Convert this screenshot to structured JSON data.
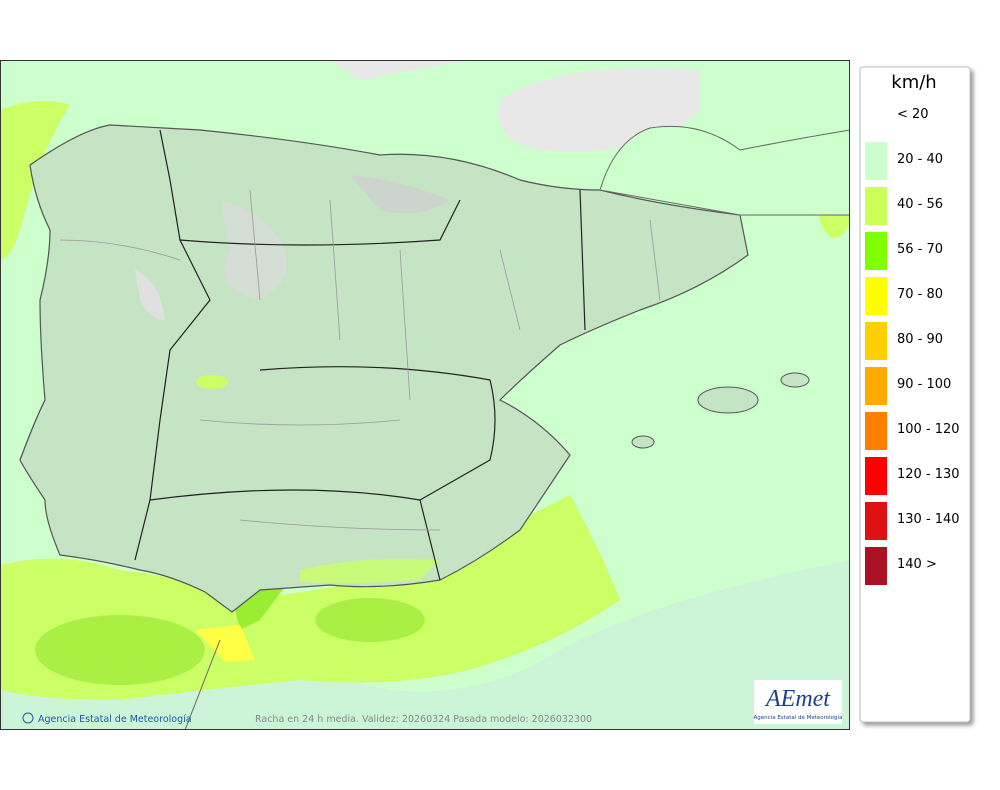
{
  "legend": {
    "unit": "km/h",
    "items": [
      {
        "label": "< 20",
        "color": "#ffffff"
      },
      {
        "label": "20 - 40",
        "color": "#ccffcc"
      },
      {
        "label": "40 - 56",
        "color": "#ccff55"
      },
      {
        "label": "56 - 70",
        "color": "#80ff00"
      },
      {
        "label": "70 - 80",
        "color": "#ffff00"
      },
      {
        "label": "80 - 90",
        "color": "#ffd000"
      },
      {
        "label": "90 - 100",
        "color": "#ffaa00"
      },
      {
        "label": "100 - 120",
        "color": "#ff8000"
      },
      {
        "label": "120 - 130",
        "color": "#ff0000"
      },
      {
        "label": "130 - 140",
        "color": "#dd1111"
      },
      {
        "label": "140 >",
        "color": "#aa1122"
      }
    ]
  },
  "map": {
    "credit": "Agencia Estatal de Meteorología",
    "caption": "Racha en 24 h media. Validez: 20260324 Pasada modelo: 2026032300"
  },
  "logo": {
    "name": "AEmet",
    "subtitle": "Agencia Estatal de Meteorología"
  }
}
